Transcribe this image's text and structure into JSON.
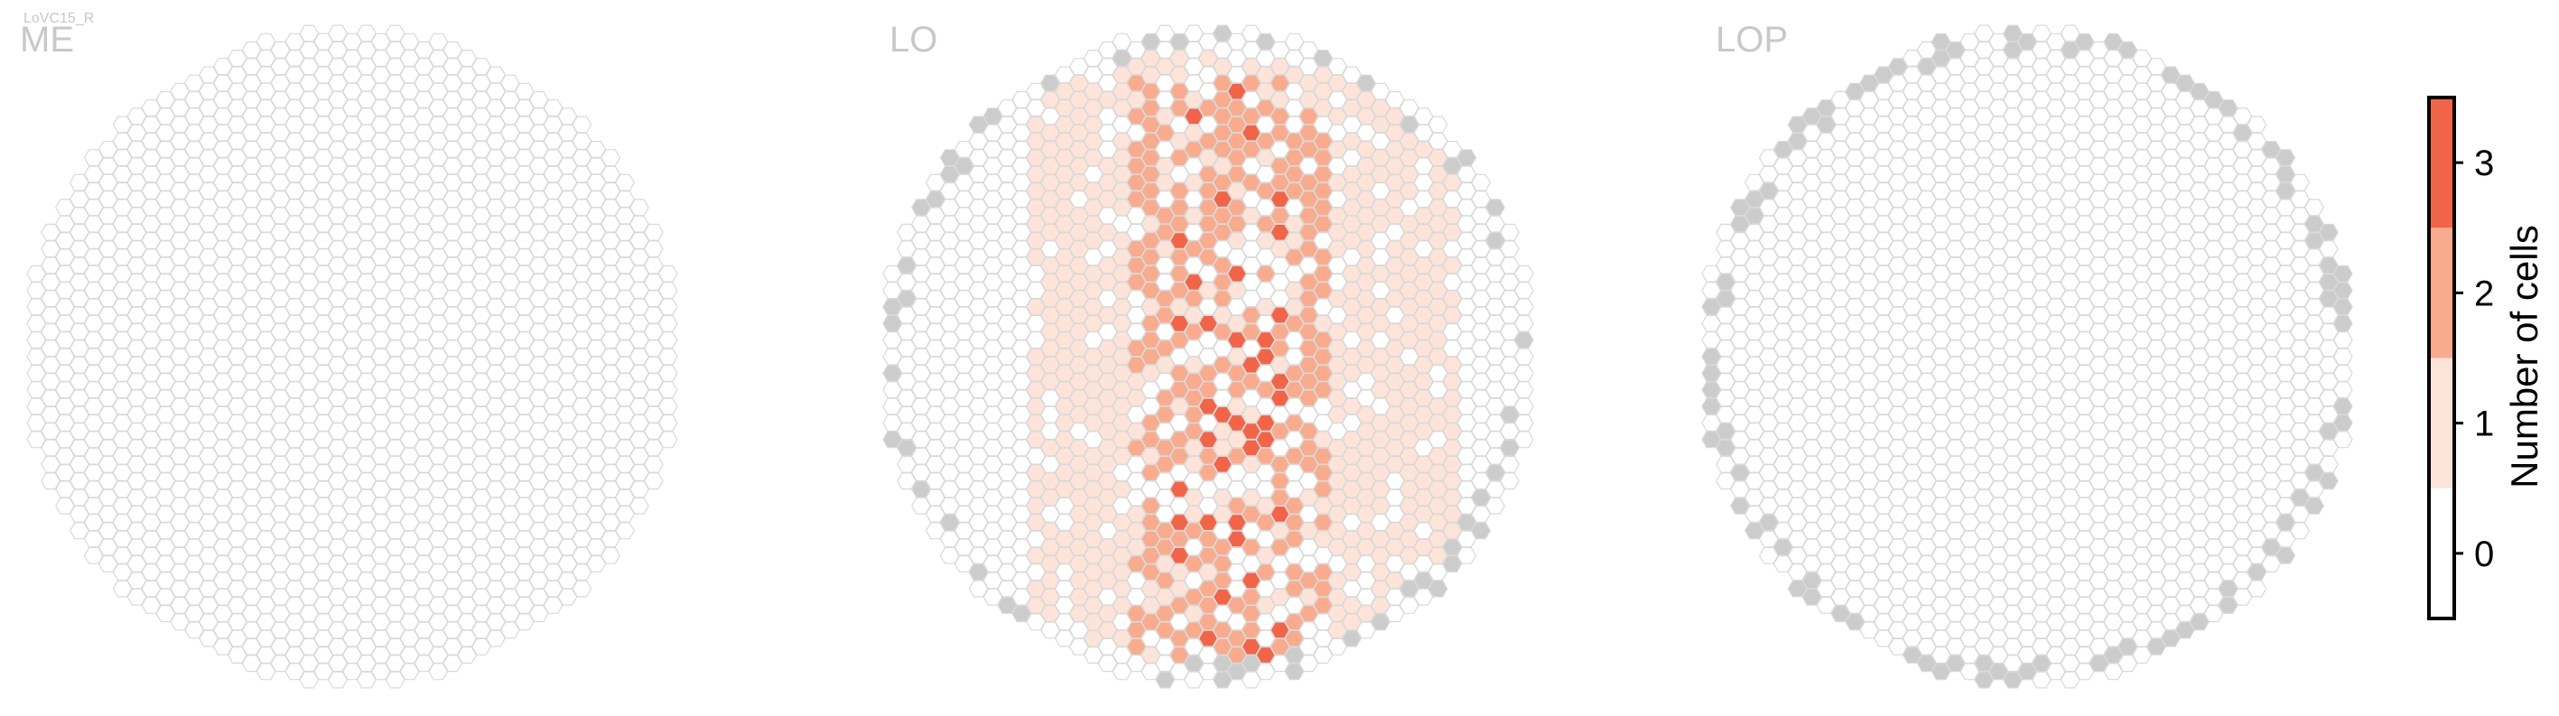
{
  "cell_type": "LoVC15_R",
  "chart_data": [
    {
      "type": "heatmap",
      "title": "ME",
      "max_count": 0,
      "cells": []
    },
    {
      "type": "heatmap",
      "title": "LO",
      "max_count": 3,
      "cells": "~300 of ~420 hexagonal columns innervated (counts 1-3); peak density (3 cells) near center, gray columns along the rim are outside the region"
    },
    {
      "type": "heatmap",
      "title": "LOP",
      "max_count": 0,
      "cells": []
    }
  ],
  "colorbar": {
    "label": "Number of cells",
    "ticks": [
      "0",
      "1",
      "2",
      "3"
    ],
    "colors": [
      "#ffffff",
      "#fde3d8",
      "#f9ab8e",
      "#f26448"
    ]
  },
  "style": {
    "hex_edge": "#d9d9d9",
    "hex_outside": "#cccccc",
    "title_color": "#c8c8c8"
  }
}
